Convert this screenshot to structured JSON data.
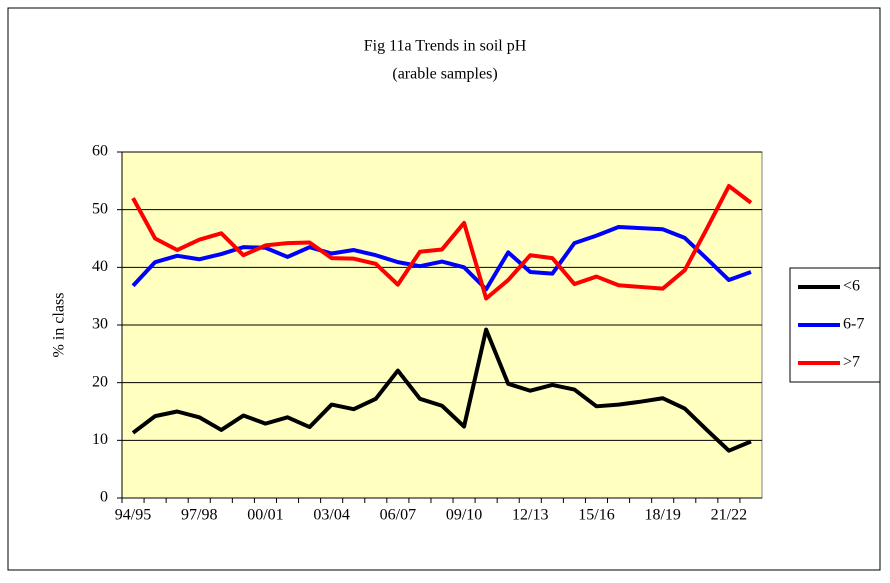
{
  "chart_data": {
    "type": "line",
    "title": "Fig 11a Trends in soil pH",
    "subtitle": "(arable samples)",
    "y_label": "% in class",
    "categories": [
      "94/95",
      null,
      null,
      "97/98",
      null,
      null,
      "00/01",
      null,
      null,
      "03/04",
      null,
      null,
      "06/07",
      null,
      null,
      "09/10",
      null,
      null,
      "12/13",
      null,
      null,
      "15/16",
      null,
      null,
      "18/19",
      null,
      null,
      "21/22",
      null
    ],
    "series": [
      {
        "name": "<6",
        "color": "#000000",
        "values": [
          11.3,
          14.2,
          15,
          14,
          11.8,
          14.3,
          12.9,
          14,
          12.3,
          16.2,
          15.4,
          17.2,
          22.1,
          17.2,
          16,
          12.4,
          29.2,
          19.8,
          18.6,
          19.6,
          18.8,
          15.9,
          16.2,
          16.7,
          17.3,
          15.5,
          11.8,
          8.2,
          9.8
        ]
      },
      {
        "name": "6-7",
        "color": "#0000ff",
        "values": [
          36.8,
          40.9,
          42,
          41.4,
          42.3,
          43.5,
          43.4,
          41.8,
          43.5,
          42.4,
          43,
          42.1,
          40.9,
          40.2,
          41,
          40,
          36.2,
          42.6,
          39.2,
          38.9,
          44.2,
          45.5,
          47,
          46.8,
          46.6,
          45.1,
          41.5,
          37.8,
          39.2
        ]
      },
      {
        "name": ">7",
        "color": "#ff0000",
        "values": [
          52,
          45,
          43,
          44.8,
          45.9,
          42.1,
          43.8,
          44.2,
          44.3,
          41.6,
          41.5,
          40.6,
          37,
          42.7,
          43.1,
          47.7,
          34.6,
          37.8,
          42.1,
          41.6,
          37.1,
          38.4,
          36.9,
          36.6,
          36.3,
          39.5,
          46.7,
          54.1,
          51.2
        ]
      }
    ],
    "ylim": [
      0,
      60
    ],
    "yticks": [
      0,
      10,
      20,
      30,
      40,
      50,
      60
    ],
    "grid": true,
    "legend": "right",
    "plot_background": "#ffffc0"
  }
}
